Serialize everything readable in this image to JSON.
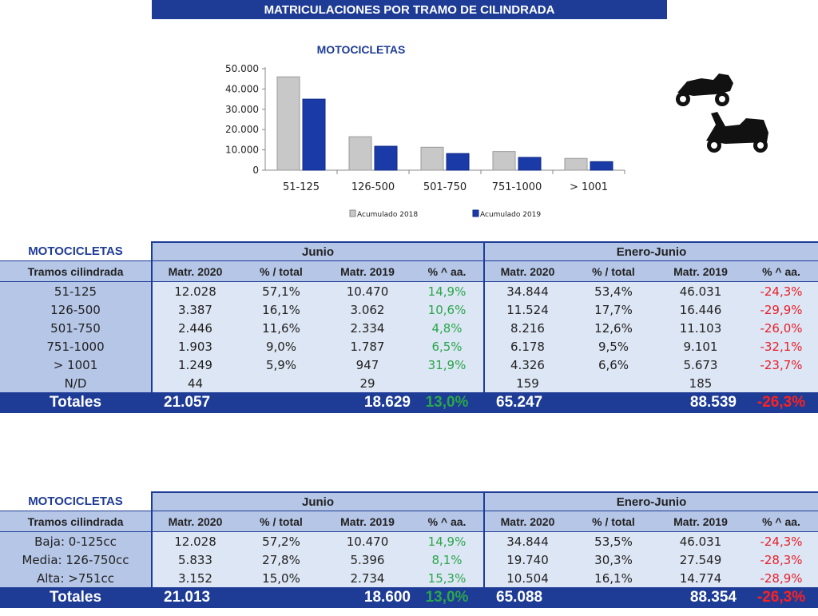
{
  "header": {
    "title": "MATRICULACIONES POR TRAMO DE CILINDRADA"
  },
  "chart_data": {
    "type": "bar",
    "title": "MOTOCICLETAS",
    "categories": [
      "51-125",
      "126-500",
      "501-750",
      "751-1000",
      "> 1001"
    ],
    "series": [
      {
        "name": "Acumulado 2018",
        "values": [
          46000,
          16500,
          11300,
          9200,
          5800
        ],
        "color": "#c8c8c8"
      },
      {
        "name": "Acumulado 2019",
        "values": [
          35000,
          11800,
          8200,
          6300,
          4200
        ],
        "color": "#1a3aa8"
      }
    ],
    "ylim": [
      0,
      50000
    ],
    "yticks": [
      "0",
      "10.000",
      "20.000",
      "30.000",
      "40.000",
      "50.000"
    ],
    "grid": false,
    "legend": "bottom"
  },
  "table1": {
    "corner": "MOTOCICLETAS",
    "period1": "Junio",
    "period2": "Enero-Junio",
    "row_header": "Tramos cilindrada",
    "columns": [
      "Matr. 2020",
      "% / total",
      "Matr. 2019",
      "% ^ aa.",
      "Matr. 2020",
      "% / total",
      "Matr. 2019",
      "% ^ aa."
    ],
    "rows": [
      {
        "label": "51-125",
        "cells": [
          "12.028",
          "57,1%",
          "10.470",
          "14,9%",
          "34.844",
          "53,4%",
          "46.031",
          "-24,3%"
        ]
      },
      {
        "label": "126-500",
        "cells": [
          "3.387",
          "16,1%",
          "3.062",
          "10,6%",
          "11.524",
          "17,7%",
          "16.446",
          "-29,9%"
        ]
      },
      {
        "label": "501-750",
        "cells": [
          "2.446",
          "11,6%",
          "2.334",
          "4,8%",
          "8.216",
          "12,6%",
          "11.103",
          "-26,0%"
        ]
      },
      {
        "label": "751-1000",
        "cells": [
          "1.903",
          "9,0%",
          "1.787",
          "6,5%",
          "6.178",
          "9,5%",
          "9.101",
          "-32,1%"
        ]
      },
      {
        "label": "> 1001",
        "cells": [
          "1.249",
          "5,9%",
          "947",
          "31,9%",
          "4.326",
          "6,6%",
          "5.673",
          "-23,7%"
        ]
      },
      {
        "label": "N/D",
        "cells": [
          "44",
          "",
          "29",
          "",
          "159",
          "",
          "185",
          ""
        ]
      }
    ],
    "totals": {
      "label": "Totales",
      "m2020_jun": "21.057",
      "m2019_jun": "18.629",
      "pct_jun": "13,0%",
      "m2020_ytd": "65.247",
      "m2019_ytd": "88.539",
      "pct_ytd": "-26,3%"
    }
  },
  "table2": {
    "corner": "MOTOCICLETAS",
    "period1": "Junio",
    "period2": "Enero-Junio",
    "row_header": "Tramos cilindrada",
    "columns": [
      "Matr. 2020",
      "% / total",
      "Matr. 2019",
      "% ^ aa.",
      "Matr. 2020",
      "% / total",
      "Matr. 2019",
      "% ^ aa."
    ],
    "rows": [
      {
        "label": "Baja: 0-125cc",
        "cells": [
          "12.028",
          "57,2%",
          "10.470",
          "14,9%",
          "34.844",
          "53,5%",
          "46.031",
          "-24,3%"
        ]
      },
      {
        "label": "Media: 126-750cc",
        "cells": [
          "5.833",
          "27,8%",
          "5.396",
          "8,1%",
          "19.740",
          "30,3%",
          "27.549",
          "-28,3%"
        ]
      },
      {
        "label": "Alta: >751cc",
        "cells": [
          "3.152",
          "15,0%",
          "2.734",
          "15,3%",
          "10.504",
          "16,1%",
          "14.774",
          "-28,9%"
        ]
      }
    ],
    "totals": {
      "label": "Totales",
      "m2020_jun": "21.013",
      "m2019_jun": "18.600",
      "pct_jun": "13,0%",
      "m2020_ytd": "65.088",
      "m2019_ytd": "88.354",
      "pct_ytd": "-26,3%"
    }
  },
  "icons": [
    "motorcycle-icon",
    "scooter-icon"
  ]
}
